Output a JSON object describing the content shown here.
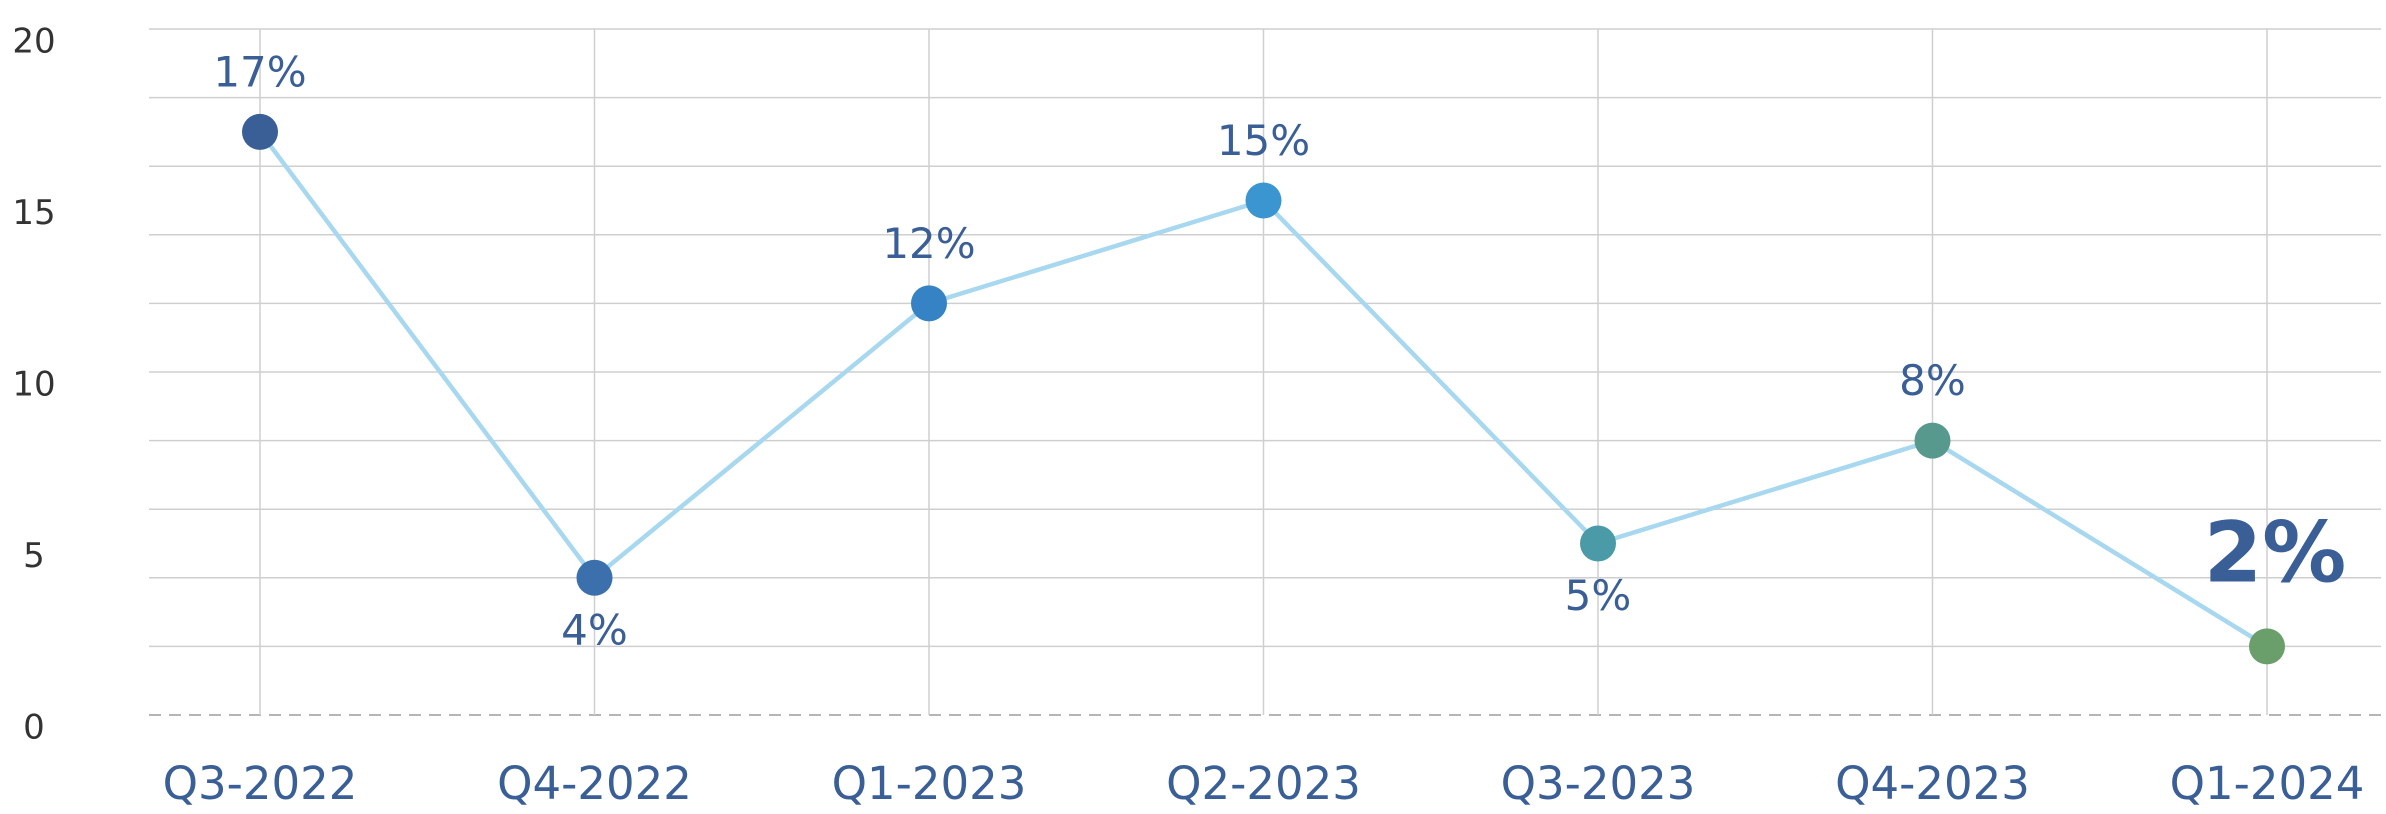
{
  "chart_data": {
    "type": "line",
    "categories": [
      "Q3-2022",
      "Q4-2022",
      "Q1-2023",
      "Q2-2023",
      "Q3-2023",
      "Q4-2023",
      "Q1-2024"
    ],
    "values": [
      17,
      4,
      12,
      15,
      5,
      8,
      2
    ],
    "value_labels": [
      "17%",
      "4%",
      "12%",
      "15%",
      "5%",
      "8%",
      "2%"
    ],
    "point_colors": [
      "#3a5f97",
      "#3b70ad",
      "#3582c4",
      "#3a95d0",
      "#4a9aa8",
      "#58998e",
      "#6a9f6c"
    ],
    "line_color": "#a8d8ef",
    "ylim": [
      0,
      20
    ],
    "yticks": [
      0,
      5,
      10,
      15,
      20
    ],
    "grid_ticks": [
      2,
      4,
      6,
      8,
      10,
      12,
      14,
      16,
      18,
      20
    ],
    "grid": true,
    "highlight_index": 6
  }
}
